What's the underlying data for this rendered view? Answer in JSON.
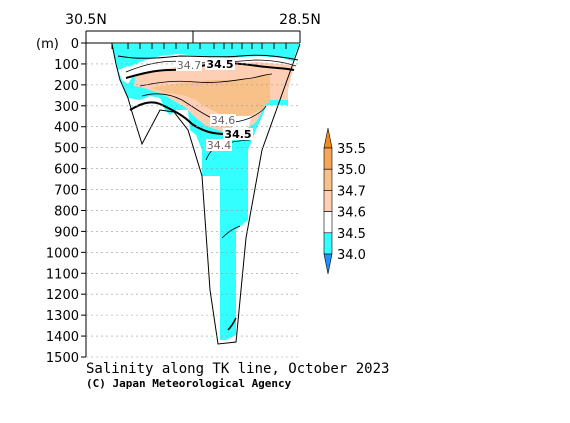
{
  "chart_data": {
    "type": "heatmap",
    "title": "Salinity along TK line, October 2023",
    "credit": "(C) Japan Meteorological Agency",
    "x_labels": {
      "left": "30.5N",
      "right": "28.5N"
    },
    "ylabel": "(m)",
    "y_ticks": [
      0,
      100,
      200,
      300,
      400,
      500,
      600,
      700,
      800,
      900,
      1000,
      1100,
      1200,
      1300,
      1400,
      1500
    ],
    "ylim": [
      0,
      1500
    ],
    "colorbar": {
      "levels": [
        "34.0",
        "34.5",
        "34.6",
        "34.7",
        "35.0",
        "35.5"
      ],
      "colors": [
        "#1e90ff",
        "#33ffff",
        "#ffffff",
        "#ffcfb5",
        "#f8c189",
        "#f5a65a",
        "#f08b1a"
      ]
    },
    "contour_labels": [
      {
        "text": "34.7",
        "bold": false
      },
      {
        "text": "34.5",
        "bold": true
      },
      {
        "text": "34.6",
        "bold": false
      },
      {
        "text": "34.5",
        "bold": true
      },
      {
        "text": "34.4",
        "bold": false
      }
    ]
  }
}
